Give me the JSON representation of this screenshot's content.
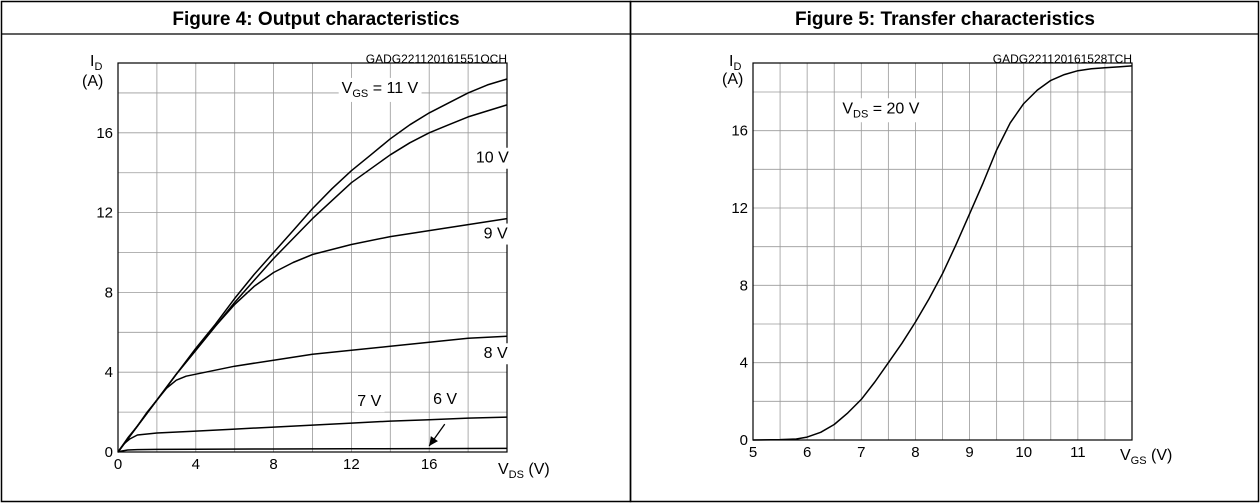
{
  "chart_data": [
    {
      "type": "line",
      "title": "Figure 4: Output characteristics",
      "code": "GADG221120161551OCH",
      "ylabel": {
        "main": "I",
        "sub": "D",
        "unit": "(A)"
      },
      "xlabel": {
        "main": "V",
        "sub": "DS",
        "unit": " (V)"
      },
      "xlim": [
        0,
        20
      ],
      "ylim": [
        0,
        19.5
      ],
      "xticks": [
        0,
        4,
        8,
        12,
        16
      ],
      "yticks": [
        0,
        4,
        8,
        12,
        16
      ],
      "grid": true,
      "series": [
        {
          "name": "V_GS = 11 V",
          "x": [
            0,
            1,
            2,
            3,
            4,
            5,
            6,
            7,
            8,
            9,
            10,
            11,
            12,
            13,
            14,
            15,
            16,
            17,
            18,
            19,
            20
          ],
          "y": [
            0,
            1.3,
            2.6,
            3.9,
            5.2,
            6.4,
            7.7,
            8.9,
            10.0,
            11.1,
            12.2,
            13.2,
            14.1,
            14.9,
            15.7,
            16.4,
            17.0,
            17.5,
            18.0,
            18.4,
            18.7
          ]
        },
        {
          "name": "10 V",
          "x": [
            0,
            1,
            2,
            3,
            4,
            5,
            6,
            7,
            8,
            9,
            10,
            11,
            12,
            13,
            14,
            15,
            16,
            17,
            18,
            19,
            20
          ],
          "y": [
            0,
            1.3,
            2.6,
            3.9,
            5.1,
            6.3,
            7.5,
            8.6,
            9.7,
            10.7,
            11.7,
            12.6,
            13.5,
            14.2,
            14.9,
            15.5,
            16.0,
            16.4,
            16.8,
            17.1,
            17.4
          ]
        },
        {
          "name": "9 V",
          "x": [
            0,
            1,
            2,
            3,
            4,
            5,
            6,
            7,
            8,
            9,
            10,
            12,
            14,
            16,
            18,
            20
          ],
          "y": [
            0,
            1.3,
            2.6,
            3.9,
            5.1,
            6.3,
            7.4,
            8.3,
            9.0,
            9.5,
            9.9,
            10.4,
            10.8,
            11.1,
            11.4,
            11.7
          ]
        },
        {
          "name": "8 V",
          "x": [
            0,
            0.5,
            1,
            1.5,
            2,
            2.5,
            3,
            3.5,
            4,
            6,
            8,
            10,
            12,
            14,
            16,
            18,
            20
          ],
          "y": [
            0,
            0.7,
            1.3,
            2.0,
            2.6,
            3.2,
            3.6,
            3.8,
            3.9,
            4.3,
            4.6,
            4.9,
            5.1,
            5.3,
            5.5,
            5.7,
            5.8
          ]
        },
        {
          "name": "7 V",
          "x": [
            0,
            0.3,
            0.6,
            1,
            1.5,
            2,
            4,
            6,
            8,
            10,
            12,
            14,
            16,
            18,
            20
          ],
          "y": [
            0,
            0.4,
            0.65,
            0.85,
            0.9,
            0.95,
            1.05,
            1.15,
            1.25,
            1.35,
            1.45,
            1.55,
            1.62,
            1.7,
            1.75
          ]
        },
        {
          "name": "6 V",
          "x": [
            0,
            0.2,
            0.5,
            1,
            2,
            4,
            8,
            12,
            16,
            20
          ],
          "y": [
            0,
            0.05,
            0.1,
            0.12,
            0.13,
            0.14,
            0.15,
            0.16,
            0.17,
            0.18
          ]
        }
      ],
      "labels": [
        {
          "text": "11 V",
          "prefix": "V",
          "sub": "GS",
          "mid": " = ",
          "x": 11.5,
          "y": 18.0
        },
        {
          "text": "10 V",
          "x": 18.4,
          "y": 14.5
        },
        {
          "text": "9 V",
          "x": 18.8,
          "y": 10.7
        },
        {
          "text": "8 V",
          "x": 18.8,
          "y": 4.7
        },
        {
          "text": "7 V",
          "x": 12.3,
          "y": 2.3
        },
        {
          "text": "6 V",
          "x": 16.2,
          "y": 2.4
        }
      ],
      "arrow": {
        "from": [
          16.8,
          1.4
        ],
        "to": [
          16.0,
          0.3
        ]
      }
    },
    {
      "type": "line",
      "title": "Figure 5: Transfer characteristics",
      "code": "GADG221120161528TCH",
      "ylabel": {
        "main": "I",
        "sub": "D",
        "unit": "(A)"
      },
      "xlabel": {
        "main": "V",
        "sub": "GS",
        "unit": " (V)"
      },
      "xlim": [
        5,
        12
      ],
      "ylim": [
        0,
        19.5
      ],
      "xticks": [
        5,
        6,
        7,
        8,
        9,
        10,
        11
      ],
      "yticks": [
        0,
        4,
        8,
        12,
        16
      ],
      "grid": true,
      "series": [
        {
          "name": "V_DS = 20 V",
          "x": [
            5,
            5.5,
            5.8,
            6,
            6.25,
            6.5,
            6.75,
            7,
            7.25,
            7.5,
            7.75,
            8,
            8.25,
            8.5,
            8.75,
            9,
            9.25,
            9.5,
            9.75,
            10,
            10.25,
            10.5,
            10.75,
            11,
            11.25,
            11.5,
            11.75,
            12
          ],
          "y": [
            0,
            0.02,
            0.05,
            0.15,
            0.4,
            0.8,
            1.4,
            2.1,
            3.0,
            4.0,
            5.0,
            6.1,
            7.3,
            8.6,
            10.1,
            11.7,
            13.3,
            15.0,
            16.4,
            17.4,
            18.1,
            18.6,
            18.9,
            19.1,
            19.2,
            19.25,
            19.3,
            19.35
          ]
        }
      ],
      "labels": [
        {
          "text": "20 V",
          "prefix": "V",
          "sub": "DS",
          "mid": " = ",
          "x": 6.65,
          "y": 16.9
        }
      ]
    }
  ]
}
